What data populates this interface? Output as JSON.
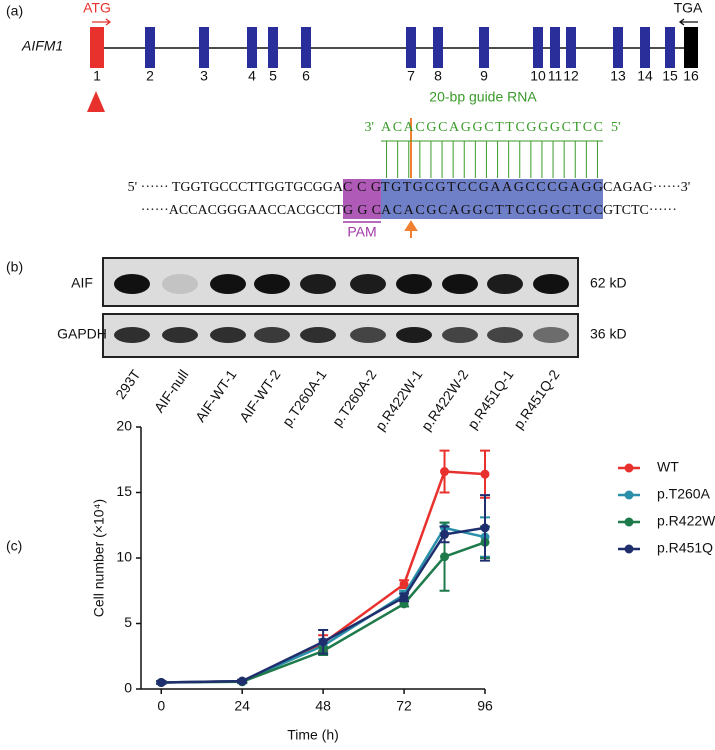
{
  "panel_a": {
    "label": "(a)",
    "gene": "AIFM1",
    "start_codon": "ATG",
    "stop_codon": "TGA",
    "exons": [
      "1",
      "2",
      "3",
      "4",
      "5",
      "6",
      "7",
      "8",
      "9",
      "10",
      "11",
      "12",
      "13",
      "14",
      "15",
      "16"
    ],
    "guide_label": "20-bp guide RNA",
    "guide": [
      "3'",
      "ACACGCAGGCTTCGGGCTCC",
      "5'"
    ],
    "top_strand": [
      "5' ······ TGGTGCCCTTGGTGCGGA",
      "CCG",
      "TGTGCGTCCGAAGCCCGAGG",
      "CAGAG······3'"
    ],
    "bottom_strand": [
      "······ACCACGGGAACCACGCCT",
      "GGC",
      "ACACGCAGGCTTCGGGCTCC",
      "GTCTC······"
    ],
    "pam": "PAM"
  },
  "panel_b": {
    "label": "(b)",
    "rows": [
      {
        "name": "AIF",
        "size": "62 kD"
      },
      {
        "name": "GAPDH",
        "size": "36 kD"
      }
    ],
    "lanes": [
      "293T",
      "AIF-null",
      "AIF-WT-1",
      "AIF-WT-2",
      "p.T260A-1",
      "p.T260A-2",
      "p.R422W-1",
      "p.R422W-2",
      "p.R451Q-1",
      "p.R451Q-2"
    ]
  },
  "panel_c": {
    "label": "(c)"
  },
  "chart_data": {
    "type": "line",
    "x_label": "Time (h)",
    "y_label": "Cell number (×10⁴)",
    "x": [
      0,
      24,
      48,
      72,
      84,
      96
    ],
    "xlim": [
      -6,
      96
    ],
    "xticks": [
      0,
      24,
      48,
      72,
      96
    ],
    "ylim": [
      0,
      20
    ],
    "yticks": [
      0,
      5,
      10,
      15,
      20
    ],
    "series": [
      {
        "name": "WT",
        "color": "#e8302c",
        "values": [
          0.5,
          0.6,
          3.5,
          8.0,
          16.6,
          16.4
        ],
        "errors": [
          0.1,
          0.1,
          0.6,
          0.3,
          1.6,
          1.8
        ]
      },
      {
        "name": "p.T260A",
        "color": "#2a8fa8",
        "values": [
          0.5,
          0.6,
          3.3,
          7.2,
          12.3,
          11.6
        ],
        "errors": [
          0.1,
          0.1,
          0.5,
          0.3,
          0.4,
          1.5
        ]
      },
      {
        "name": "p.R422W",
        "color": "#1e7a4a",
        "values": [
          0.5,
          0.55,
          2.9,
          6.5,
          10.1,
          11.2
        ],
        "errors": [
          0.1,
          0.1,
          0.3,
          0.2,
          2.6,
          1.2
        ]
      },
      {
        "name": "p.R451Q",
        "color": "#1f2f6e",
        "values": [
          0.5,
          0.6,
          3.6,
          7.0,
          11.8,
          12.3
        ],
        "errors": [
          0.1,
          0.1,
          0.9,
          0.3,
          0.6,
          2.5
        ]
      }
    ]
  }
}
